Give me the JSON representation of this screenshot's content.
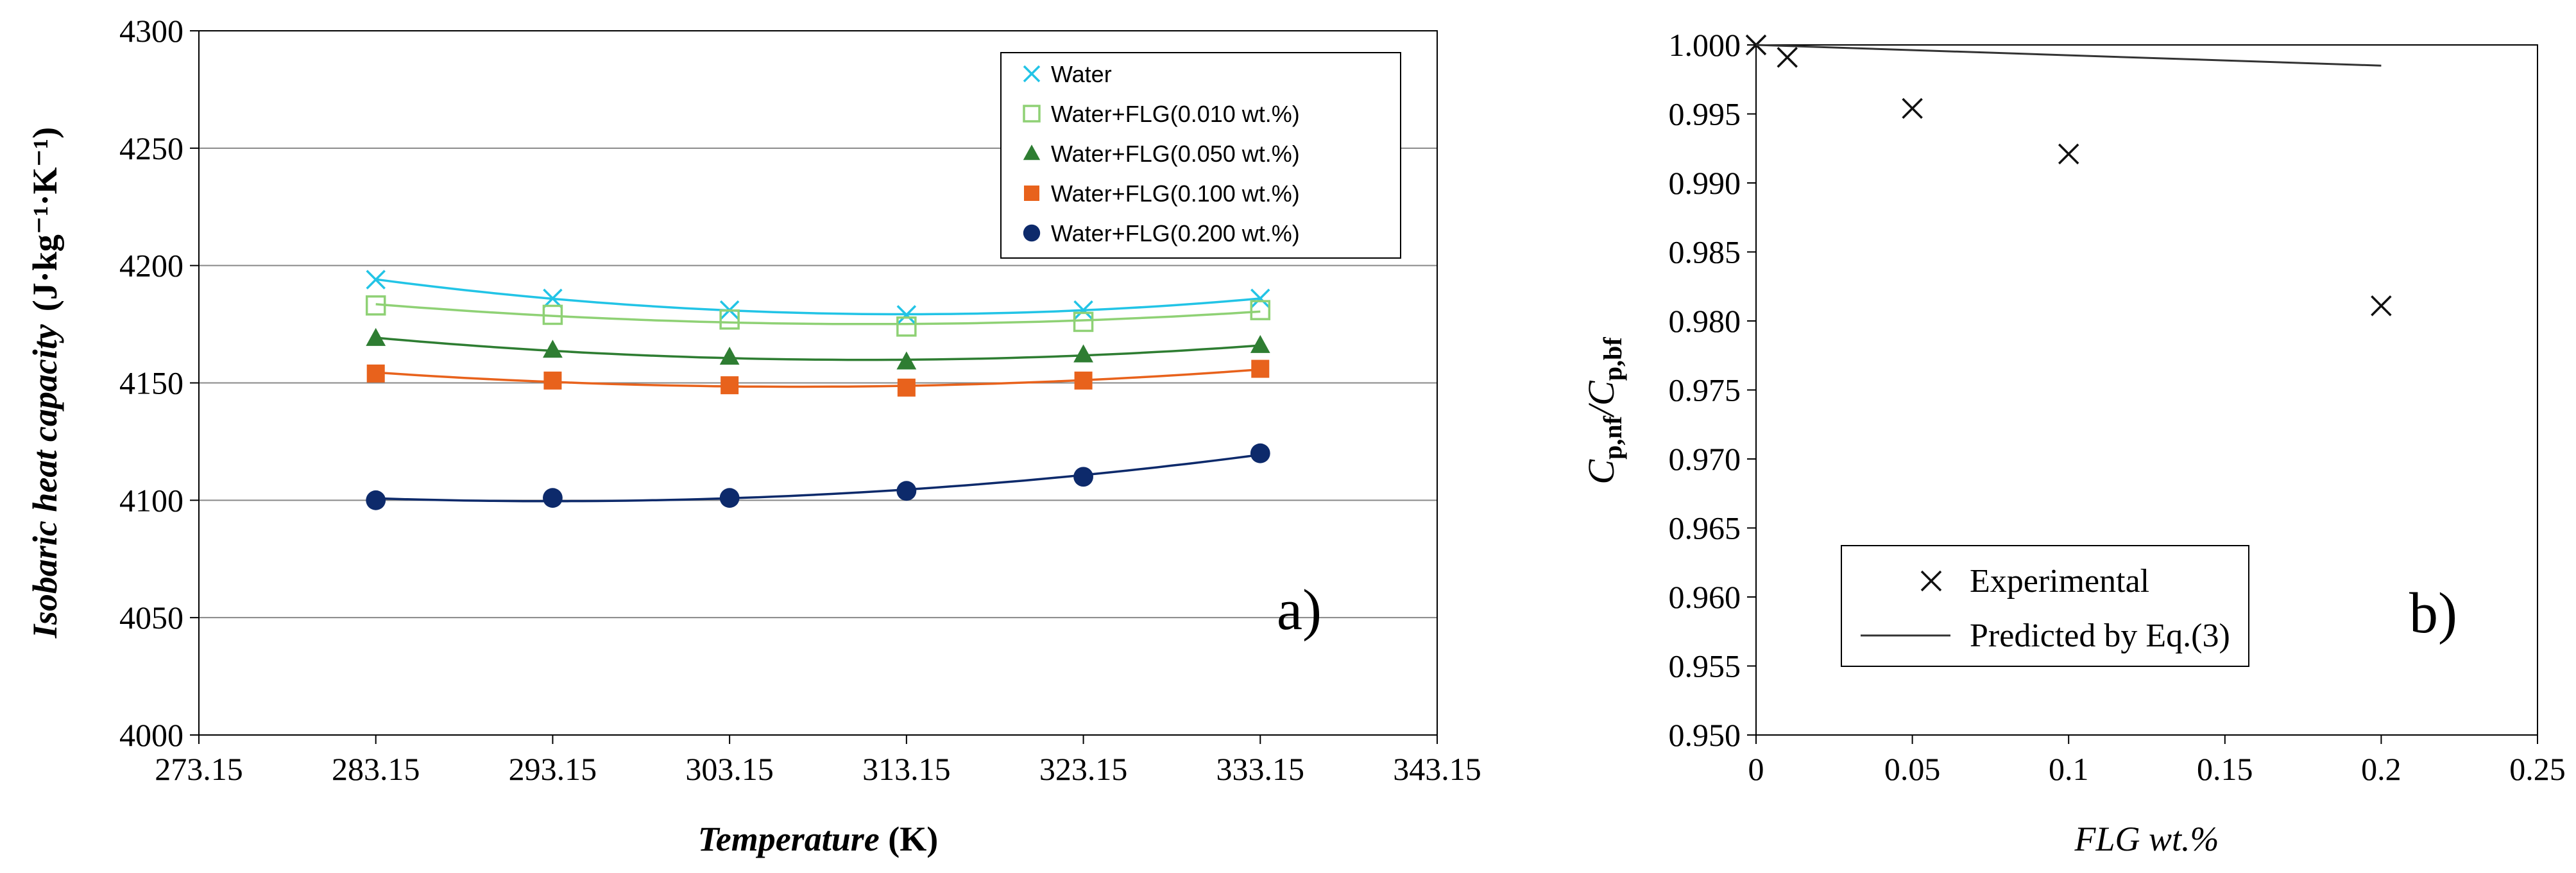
{
  "chart_data": [
    {
      "type": "scatter",
      "panel_label": "a)",
      "xlabel": "Temperature",
      "xlabel_unit": " (K)",
      "ylabel": "Isobaric heat capacity",
      "ylabel_unit": "(J·kg⁻¹·K⁻¹)",
      "xlim": [
        273.15,
        343.15
      ],
      "ylim": [
        4000,
        4300
      ],
      "xticks": [
        "273.15",
        "293.15",
        "303.15",
        "313.15",
        "323.15",
        "333.15",
        "343.15"
      ],
      "xtick_values": [
        273.15,
        293.15,
        303.15,
        313.15,
        323.15,
        333.15,
        343.15
      ],
      "xticks_fixed": [
        "273.15",
        "283.15",
        "293.15",
        "303.15",
        "313.15",
        "323.15",
        "333.15",
        "343.15"
      ],
      "yticks": [
        4000,
        4050,
        4100,
        4150,
        4200,
        4250,
        4300
      ],
      "grid": "horizontal",
      "legend_position": "top-right",
      "x": [
        283.15,
        293.15,
        303.15,
        313.15,
        323.15,
        333.15
      ],
      "series": [
        {
          "name": "Water",
          "marker": "x",
          "color": "#22c4e6",
          "values": [
            4194,
            4186,
            4181,
            4179,
            4181,
            4186
          ]
        },
        {
          "name": "Water+FLG(0.010 wt.%)",
          "marker": "open-square",
          "color": "#8fd175",
          "values": [
            4183,
            4179,
            4177,
            4174,
            4176,
            4181
          ]
        },
        {
          "name": "Water+FLG(0.050 wt.%)",
          "marker": "triangle",
          "color": "#2e7d32",
          "values": [
            4169,
            4164,
            4161,
            4159,
            4162,
            4166
          ]
        },
        {
          "name": "Water+FLG(0.100 wt.%)",
          "marker": "square",
          "color": "#e8621c",
          "values": [
            4154,
            4151,
            4149,
            4148,
            4151,
            4156
          ]
        },
        {
          "name": "Water+FLG(0.200 wt.%)",
          "marker": "circle",
          "color": "#0d2a6b",
          "values": [
            4100,
            4101,
            4101,
            4104,
            4110,
            4120
          ]
        }
      ]
    },
    {
      "type": "scatter",
      "panel_label": "b)",
      "xlabel": "FLG wt.%",
      "ylabel_main": "C",
      "ylabel_sub1": "p,nf",
      "ylabel_sep": "/C",
      "ylabel_sub2": "p,bf",
      "xlim": [
        0,
        0.25
      ],
      "ylim": [
        0.95,
        1.0
      ],
      "xticks": [
        "0",
        "0.05",
        "0.1",
        "0.15",
        "0.2",
        "0.25"
      ],
      "xtick_values": [
        0,
        0.05,
        0.1,
        0.15,
        0.2,
        0.25
      ],
      "yticks": [
        "0.950",
        "0.955",
        "0.960",
        "0.965",
        "0.970",
        "0.975",
        "0.980",
        "0.985",
        "0.990",
        "0.995",
        "1.000"
      ],
      "ytick_values": [
        0.95,
        0.955,
        0.96,
        0.965,
        0.97,
        0.975,
        0.98,
        0.985,
        0.99,
        0.995,
        1.0
      ],
      "grid": "none",
      "legend_position": "bottom-left",
      "series": [
        {
          "name": "Experimental",
          "marker": "x",
          "x": [
            0,
            0.01,
            0.05,
            0.1,
            0.2
          ],
          "y": [
            1.0,
            0.9991,
            0.9954,
            0.9921,
            0.9811
          ]
        },
        {
          "name": "Predicted by Eq.(3)",
          "marker": "line",
          "x": [
            0,
            0.2
          ],
          "y": [
            1.0,
            0.9985
          ]
        }
      ]
    }
  ]
}
